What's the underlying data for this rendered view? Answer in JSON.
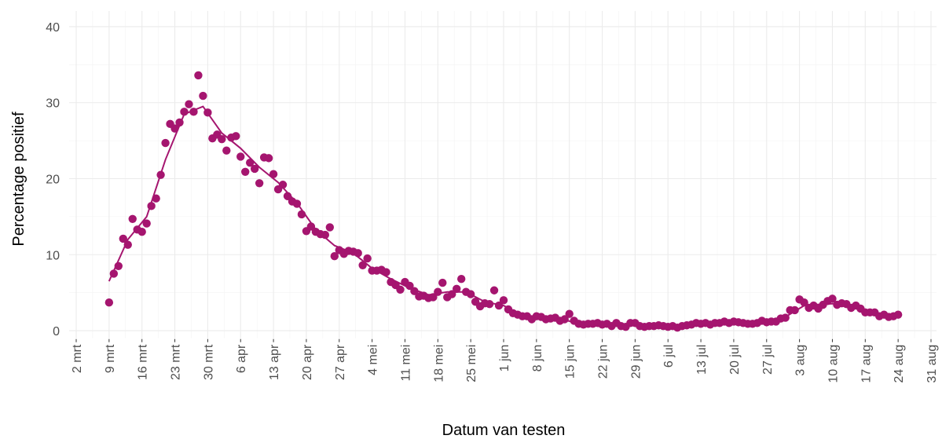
{
  "chart_data": {
    "type": "scatter",
    "x_label": "Datum van testen",
    "y_label": "Percentage positief",
    "color": "#a5156f",
    "grid": true,
    "x": [
      "03-09",
      "03-10",
      "03-11",
      "03-12",
      "03-13",
      "03-14",
      "03-15",
      "03-16",
      "03-17",
      "03-18",
      "03-19",
      "03-20",
      "03-21",
      "03-22",
      "03-23",
      "03-24",
      "03-25",
      "03-26",
      "03-27",
      "03-28",
      "03-29",
      "03-30",
      "03-31",
      "04-01",
      "04-02",
      "04-03",
      "04-04",
      "04-05",
      "04-06",
      "04-07",
      "04-08",
      "04-09",
      "04-10",
      "04-11",
      "04-12",
      "04-13",
      "04-14",
      "04-15",
      "04-16",
      "04-17",
      "04-18",
      "04-19",
      "04-20",
      "04-21",
      "04-22",
      "04-23",
      "04-24",
      "04-25",
      "04-26",
      "04-27",
      "04-28",
      "04-29",
      "04-30",
      "05-01",
      "05-02",
      "05-03",
      "05-04",
      "05-05",
      "05-06",
      "05-07",
      "05-08",
      "05-09",
      "05-10",
      "05-11",
      "05-12",
      "05-13",
      "05-14",
      "05-15",
      "05-16",
      "05-17",
      "05-18",
      "05-19",
      "05-20",
      "05-21",
      "05-22",
      "05-23",
      "05-24",
      "05-25",
      "05-26",
      "05-27",
      "05-28",
      "05-29",
      "05-30",
      "05-31",
      "06-01",
      "06-02",
      "06-03",
      "06-04",
      "06-05",
      "06-06",
      "06-07",
      "06-08",
      "06-09",
      "06-10",
      "06-11",
      "06-12",
      "06-13",
      "06-14",
      "06-15",
      "06-16",
      "06-17",
      "06-18",
      "06-19",
      "06-20",
      "06-21",
      "06-22",
      "06-23",
      "06-24",
      "06-25",
      "06-26",
      "06-27",
      "06-28",
      "06-29",
      "06-30",
      "07-01",
      "07-02",
      "07-03",
      "07-04",
      "07-05",
      "07-06",
      "07-07",
      "07-08",
      "07-09",
      "07-10",
      "07-11",
      "07-12",
      "07-13",
      "07-14",
      "07-15",
      "07-16",
      "07-17",
      "07-18",
      "07-19",
      "07-20",
      "07-21",
      "07-22",
      "07-23",
      "07-24",
      "07-25",
      "07-26",
      "07-27",
      "07-28",
      "07-29",
      "07-30",
      "07-31",
      "08-01",
      "08-02",
      "08-03",
      "08-04",
      "08-05",
      "08-06",
      "08-07",
      "08-08",
      "08-09",
      "08-10",
      "08-11",
      "08-12",
      "08-13",
      "08-14",
      "08-15",
      "08-16",
      "08-17",
      "08-18",
      "08-19",
      "08-20",
      "08-21",
      "08-22",
      "08-23",
      "08-24"
    ],
    "values": [
      3.7,
      7.5,
      8.5,
      12.1,
      11.3,
      14.7,
      13.3,
      13.0,
      14.1,
      16.4,
      17.4,
      20.5,
      24.7,
      27.2,
      26.6,
      27.4,
      28.8,
      29.8,
      28.8,
      33.6,
      30.9,
      28.7,
      25.3,
      25.8,
      25.2,
      23.7,
      25.4,
      25.6,
      22.9,
      20.9,
      22.1,
      21.3,
      19.4,
      22.8,
      22.7,
      20.6,
      18.6,
      19.2,
      17.7,
      17.0,
      16.7,
      15.3,
      13.1,
      13.7,
      13.0,
      12.7,
      12.6,
      13.6,
      9.8,
      10.6,
      10.1,
      10.5,
      10.4,
      10.2,
      8.6,
      9.5,
      7.9,
      7.9,
      8.0,
      7.7,
      6.4,
      6.0,
      5.4,
      6.4,
      5.9,
      5.2,
      4.5,
      4.6,
      4.3,
      4.4,
      5.1,
      6.3,
      4.4,
      4.8,
      5.5,
      6.8,
      5.1,
      4.8,
      3.8,
      3.2,
      3.6,
      3.5,
      5.3,
      3.3,
      4.0,
      2.8,
      2.3,
      2.1,
      1.9,
      1.9,
      1.5,
      1.9,
      1.8,
      1.5,
      1.6,
      1.7,
      1.3,
      1.5,
      2.2,
      1.3,
      0.9,
      0.8,
      0.9,
      0.9,
      1.0,
      0.8,
      0.9,
      0.6,
      1.0,
      0.6,
      0.5,
      1.0,
      1.0,
      0.6,
      0.5,
      0.6,
      0.6,
      0.7,
      0.6,
      0.5,
      0.6,
      0.4,
      0.6,
      0.7,
      0.8,
      1.0,
      0.9,
      1.0,
      0.8,
      1.0,
      1.0,
      1.2,
      1.0,
      1.2,
      1.1,
      1.0,
      0.9,
      0.9,
      1.0,
      1.3,
      1.1,
      1.2,
      1.2,
      1.6,
      1.7,
      2.7,
      2.7,
      4.1,
      3.7,
      3.0,
      3.3,
      2.9,
      3.4,
      3.9,
      4.2,
      3.4,
      3.6,
      3.5,
      3.0,
      3.3,
      2.9,
      2.4,
      2.4,
      2.4,
      1.9,
      2.1,
      1.8,
      1.9,
      2.1
    ],
    "trend": {
      "x": [
        "03-09",
        "03-13",
        "03-17",
        "03-21",
        "03-25",
        "03-29",
        "04-02",
        "04-06",
        "04-10",
        "04-14",
        "04-18",
        "04-22",
        "04-26",
        "04-30",
        "05-04",
        "05-08",
        "05-12",
        "05-16",
        "05-20",
        "05-24",
        "05-28",
        "06-01",
        "06-05",
        "06-09",
        "06-13",
        "06-17",
        "06-21",
        "06-25",
        "06-29",
        "07-03",
        "07-07",
        "07-11",
        "07-15",
        "07-19",
        "07-23",
        "07-27",
        "07-31",
        "08-04",
        "08-08",
        "08-12",
        "08-16",
        "08-20",
        "08-24"
      ],
      "values": [
        6.5,
        12.0,
        15.0,
        22.5,
        28.5,
        29.5,
        26.0,
        24.0,
        21.5,
        19.5,
        16.8,
        13.3,
        11.2,
        10.2,
        8.2,
        6.8,
        5.6,
        4.7,
        5.1,
        5.1,
        3.8,
        3.3,
        2.0,
        1.7,
        1.5,
        1.0,
        0.9,
        0.8,
        0.7,
        0.6,
        0.55,
        0.7,
        0.9,
        1.1,
        1.0,
        1.2,
        1.8,
        3.3,
        3.5,
        3.6,
        3.0,
        2.2,
        2.0
      ]
    },
    "xlim": [
      "03-02",
      "08-31"
    ],
    "xticks": [
      {
        "value": "03-02",
        "label": "2 mrt"
      },
      {
        "value": "03-09",
        "label": "9 mrt"
      },
      {
        "value": "03-16",
        "label": "16 mrt"
      },
      {
        "value": "03-23",
        "label": "23 mrt"
      },
      {
        "value": "03-30",
        "label": "30 mrt"
      },
      {
        "value": "04-06",
        "label": "6 apr"
      },
      {
        "value": "04-13",
        "label": "13 apr"
      },
      {
        "value": "04-20",
        "label": "20 apr"
      },
      {
        "value": "04-27",
        "label": "27 apr"
      },
      {
        "value": "05-04",
        "label": "4 mei"
      },
      {
        "value": "05-11",
        "label": "11 mei"
      },
      {
        "value": "05-18",
        "label": "18 mei"
      },
      {
        "value": "05-25",
        "label": "25 mei"
      },
      {
        "value": "06-01",
        "label": "1 jun"
      },
      {
        "value": "06-08",
        "label": "8 jun"
      },
      {
        "value": "06-15",
        "label": "15 jun"
      },
      {
        "value": "06-22",
        "label": "22 jun"
      },
      {
        "value": "06-29",
        "label": "29 jun"
      },
      {
        "value": "07-06",
        "label": "6 jul"
      },
      {
        "value": "07-13",
        "label": "13 jul"
      },
      {
        "value": "07-20",
        "label": "20 jul"
      },
      {
        "value": "07-27",
        "label": "27 jul"
      },
      {
        "value": "08-03",
        "label": "3 aug"
      },
      {
        "value": "08-10",
        "label": "10 aug"
      },
      {
        "value": "08-17",
        "label": "17 aug"
      },
      {
        "value": "08-24",
        "label": "24 aug"
      },
      {
        "value": "08-31",
        "label": "31 aug"
      }
    ],
    "ylim": [
      -1,
      41
    ],
    "yticks": [
      0,
      10,
      20,
      30,
      40
    ]
  }
}
